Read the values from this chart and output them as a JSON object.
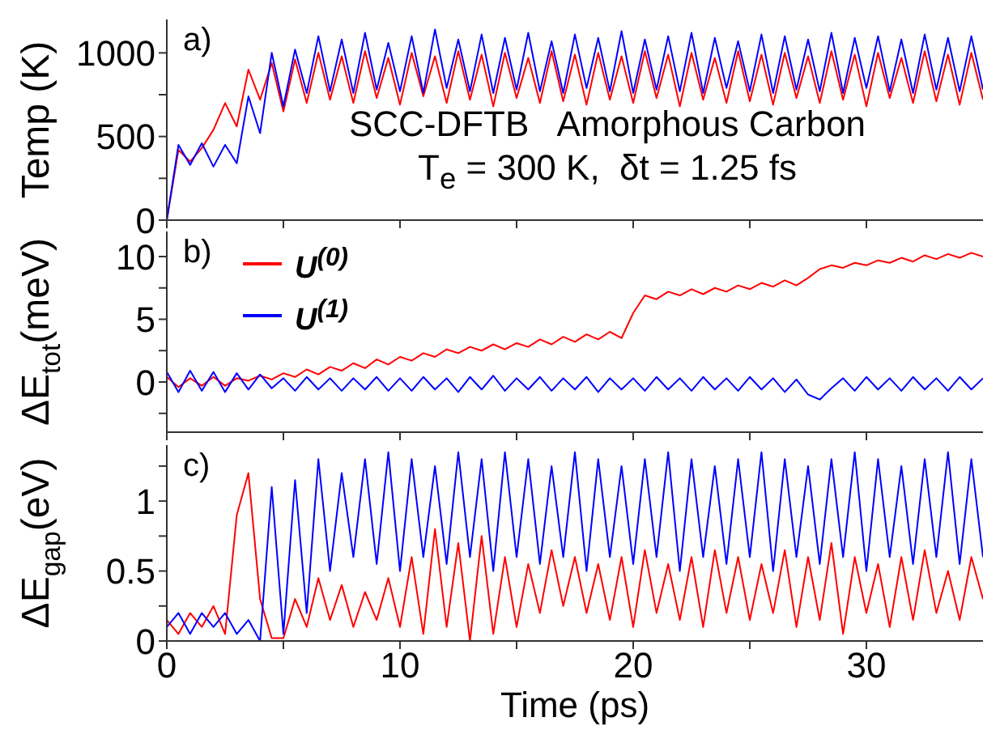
{
  "chart_data": [
    {
      "type": "line",
      "ylabel": "Temp (K)",
      "annotations": [
        "a)",
        "SCC-DFTB   Amorphous Carbon",
        "T$_{e}$ = 300 K,  δt = 1.25 fs"
      ],
      "xlim": [
        0,
        35
      ],
      "xticks": [
        0,
        {
          "value": 5,
          "label": null
        },
        10,
        {
          "value": 15,
          "label": null
        },
        20,
        {
          "value": 25,
          "label": null
        },
        30
      ],
      "ylim": [
        0,
        1200
      ],
      "yticks": [
        0,
        {
          "value": 250,
          "label": null
        },
        500,
        {
          "value": 750,
          "label": null
        },
        1000
      ],
      "tick_labels": "y",
      "grid": false,
      "legend": false,
      "marker": "none",
      "line_style": "solid",
      "x": [
        0,
        0.5,
        1,
        1.5,
        2,
        2.5,
        3,
        3.5,
        4,
        4.5,
        5,
        5.5,
        6,
        6.5,
        7,
        7.5,
        8,
        8.5,
        9,
        9.5,
        10,
        10.5,
        11,
        11.5,
        12,
        12.5,
        13,
        13.5,
        14,
        14.5,
        15,
        15.5,
        16,
        16.5,
        17,
        17.5,
        18,
        18.5,
        19,
        19.5,
        20,
        20.5,
        21,
        21.5,
        22,
        22.5,
        23,
        23.5,
        24,
        24.5,
        25,
        25.5,
        26,
        26.5,
        27,
        27.5,
        28,
        28.5,
        29,
        29.5,
        30,
        30.5,
        31,
        31.5,
        32,
        32.5,
        33,
        33.5,
        34,
        34.5,
        35
      ],
      "series": [
        {
          "color": "#ff0000",
          "values": [
            0,
            420,
            350,
            430,
            540,
            700,
            560,
            900,
            720,
            940,
            650,
            960,
            700,
            1000,
            720,
            980,
            700,
            1010,
            730,
            970,
            690,
            1000,
            740,
            980,
            700,
            1010,
            720,
            990,
            680,
            1000,
            730,
            970,
            700,
            1010,
            710,
            990,
            690,
            1000,
            720,
            980,
            700,
            1010,
            730,
            990,
            680,
            1000,
            720,
            970,
            700,
            1010,
            710,
            990,
            690,
            1000,
            730,
            980,
            700,
            1010,
            720,
            990,
            680,
            1000,
            730,
            970,
            700,
            1010,
            710,
            990,
            690,
            1000,
            720
          ]
        },
        {
          "color": "#0000ff",
          "values": [
            0,
            450,
            330,
            460,
            320,
            450,
            340,
            740,
            520,
            1000,
            680,
            1020,
            760,
            1100,
            770,
            1080,
            760,
            1120,
            780,
            1060,
            770,
            1100,
            760,
            1140,
            790,
            1080,
            770,
            1110,
            760,
            1090,
            780,
            1120,
            770,
            1070,
            760,
            1110,
            790,
            1090,
            770,
            1130,
            760,
            1080,
            780,
            1100,
            770,
            1120,
            760,
            1090,
            790,
            1070,
            770,
            1110,
            760,
            1100,
            780,
            1080,
            770,
            1120,
            760,
            1090,
            790,
            1100,
            770,
            1080,
            760,
            1110,
            780,
            1090,
            770,
            1100,
            780
          ]
        }
      ]
    },
    {
      "type": "line",
      "ylabel": "ΔE$_{tot}$(meV)",
      "annotations": [
        "b)"
      ],
      "xlim": [
        0,
        35
      ],
      "xticks": [
        0,
        {
          "value": 5,
          "label": null
        },
        10,
        {
          "value": 15,
          "label": null
        },
        20,
        {
          "value": 25,
          "label": null
        },
        30
      ],
      "ylim": [
        -4,
        12
      ],
      "yticks": [
        {
          "value": -2.5,
          "label": null
        },
        0,
        {
          "value": 2.5,
          "label": null
        },
        5,
        {
          "value": 7.5,
          "label": null
        },
        10
      ],
      "tick_labels": "y",
      "grid": false,
      "legend": "top left",
      "marker": "none",
      "line_style": "solid",
      "x": [
        0,
        0.5,
        1,
        1.5,
        2,
        2.5,
        3,
        3.5,
        4,
        4.5,
        5,
        5.5,
        6,
        6.5,
        7,
        7.5,
        8,
        8.5,
        9,
        9.5,
        10,
        10.5,
        11,
        11.5,
        12,
        12.5,
        13,
        13.5,
        14,
        14.5,
        15,
        15.5,
        16,
        16.5,
        17,
        17.5,
        18,
        18.5,
        19,
        19.5,
        20,
        20.5,
        21,
        21.5,
        22,
        22.5,
        23,
        23.5,
        24,
        24.5,
        25,
        25.5,
        26,
        26.5,
        27,
        27.5,
        28,
        28.5,
        29,
        29.5,
        30,
        30.5,
        31,
        31.5,
        32,
        32.5,
        33,
        33.5,
        34,
        34.5,
        35
      ],
      "series": [
        {
          "name": "U$^{(0)}$",
          "color": "#ff0000",
          "values": [
            0.4,
            -0.4,
            0.3,
            -0.3,
            0.4,
            -0.3,
            0.3,
            0.1,
            0.5,
            0.2,
            0.7,
            0.4,
            1.0,
            0.6,
            1.2,
            0.9,
            1.5,
            1.1,
            1.8,
            1.4,
            2.0,
            1.7,
            2.3,
            2.0,
            2.6,
            2.3,
            2.8,
            2.5,
            3.0,
            2.6,
            3.1,
            2.8,
            3.4,
            3.0,
            3.6,
            3.2,
            3.8,
            3.4,
            4.0,
            3.5,
            5.5,
            6.9,
            6.6,
            7.2,
            6.9,
            7.4,
            7.0,
            7.5,
            7.2,
            7.7,
            7.4,
            7.9,
            7.6,
            8.1,
            7.7,
            8.3,
            9.0,
            9.3,
            9.1,
            9.5,
            9.3,
            9.7,
            9.5,
            9.9,
            9.6,
            10.1,
            9.8,
            10.2,
            9.9,
            10.3,
            10.0
          ]
        },
        {
          "name": "U$^{(1)}$",
          "color": "#0000ff",
          "values": [
            0.8,
            -0.8,
            0.9,
            -0.7,
            0.8,
            -0.8,
            0.7,
            -0.6,
            0.6,
            -0.5,
            0.3,
            -0.7,
            0.4,
            -0.6,
            0.3,
            -0.7,
            0.3,
            -0.6,
            0.4,
            -0.7,
            0.3,
            -0.7,
            0.4,
            -0.6,
            0.3,
            -0.8,
            0.4,
            -0.6,
            0.5,
            -0.7,
            0.3,
            -0.6,
            0.4,
            -0.7,
            0.3,
            -0.6,
            0.4,
            -0.8,
            0.3,
            -0.6,
            0.3,
            -0.7,
            0.4,
            -0.6,
            0.3,
            -0.7,
            0.4,
            -0.6,
            0.3,
            -0.7,
            0.4,
            -0.6,
            0.3,
            -0.8,
            0.2,
            -1.0,
            -1.4,
            -0.5,
            0.3,
            -0.7,
            0.4,
            -0.6,
            0.3,
            -0.7,
            0.4,
            -0.6,
            0.3,
            -0.7,
            0.4,
            -0.6,
            0.3
          ]
        }
      ]
    },
    {
      "type": "line",
      "xlabel": "Time (ps)",
      "ylabel": "ΔE$_{gap}$(eV)",
      "annotations": [
        "c)"
      ],
      "xlim": [
        0,
        35
      ],
      "xticks": [
        0,
        {
          "value": 5,
          "label": null
        },
        10,
        {
          "value": 15,
          "label": null
        },
        20,
        {
          "value": 25,
          "label": null
        },
        30
      ],
      "ylim": [
        0,
        1.4
      ],
      "yticks": [
        0,
        {
          "value": 0.25,
          "label": null
        },
        0.5,
        {
          "value": 0.75,
          "label": null
        },
        1,
        {
          "value": 1.25,
          "label": null
        }
      ],
      "grid": false,
      "legend": false,
      "marker": "none",
      "line_style": "solid",
      "x": [
        0,
        0.5,
        1,
        1.5,
        2,
        2.5,
        3,
        3.5,
        4,
        4.5,
        5,
        5.5,
        6,
        6.5,
        7,
        7.5,
        8,
        8.5,
        9,
        9.5,
        10,
        10.5,
        11,
        11.5,
        12,
        12.5,
        13,
        13.5,
        14,
        14.5,
        15,
        15.5,
        16,
        16.5,
        17,
        17.5,
        18,
        18.5,
        19,
        19.5,
        20,
        20.5,
        21,
        21.5,
        22,
        22.5,
        23,
        23.5,
        24,
        24.5,
        25,
        25.5,
        26,
        26.5,
        27,
        27.5,
        28,
        28.5,
        29,
        29.5,
        30,
        30.5,
        31,
        31.5,
        32,
        32.5,
        33,
        33.5,
        34,
        34.5,
        35
      ],
      "series": [
        {
          "color": "#ff0000",
          "values": [
            0.15,
            0.05,
            0.2,
            0.1,
            0.25,
            0.05,
            0.9,
            1.2,
            0.3,
            0.02,
            0.02,
            0.3,
            0.1,
            0.45,
            0.15,
            0.4,
            0.1,
            0.35,
            0.15,
            0.45,
            0.1,
            0.6,
            0.05,
            0.8,
            0.1,
            0.7,
            0.0,
            0.75,
            0.05,
            0.6,
            0.1,
            0.55,
            0.2,
            0.65,
            0.25,
            0.6,
            0.2,
            0.55,
            0.15,
            0.6,
            0.1,
            0.65,
            0.2,
            0.55,
            0.15,
            0.6,
            0.1,
            0.65,
            0.2,
            0.6,
            0.15,
            0.55,
            0.2,
            0.65,
            0.1,
            0.6,
            0.15,
            0.7,
            0.05,
            0.6,
            0.2,
            0.55,
            0.1,
            0.6,
            0.15,
            0.65,
            0.2,
            0.5,
            0.15,
            0.6,
            0.3
          ]
        },
        {
          "color": "#0000ff",
          "values": [
            0.1,
            0.2,
            0.05,
            0.2,
            0.1,
            0.2,
            0.05,
            0.15,
            0.0,
            1.1,
            0.05,
            1.15,
            0.2,
            1.3,
            0.5,
            1.2,
            0.6,
            1.3,
            0.55,
            1.35,
            0.5,
            1.3,
            0.6,
            1.25,
            0.55,
            1.35,
            0.6,
            1.3,
            0.5,
            1.35,
            0.6,
            1.3,
            0.55,
            1.25,
            0.6,
            1.35,
            0.5,
            1.3,
            0.6,
            1.25,
            0.55,
            1.3,
            0.6,
            1.35,
            0.5,
            1.3,
            0.6,
            1.25,
            0.55,
            1.3,
            0.6,
            1.35,
            0.5,
            1.3,
            0.6,
            1.25,
            0.55,
            1.3,
            0.6,
            1.35,
            0.5,
            1.3,
            0.6,
            1.25,
            0.55,
            1.3,
            0.6,
            1.35,
            0.55,
            1.3,
            0.6
          ]
        }
      ]
    }
  ]
}
